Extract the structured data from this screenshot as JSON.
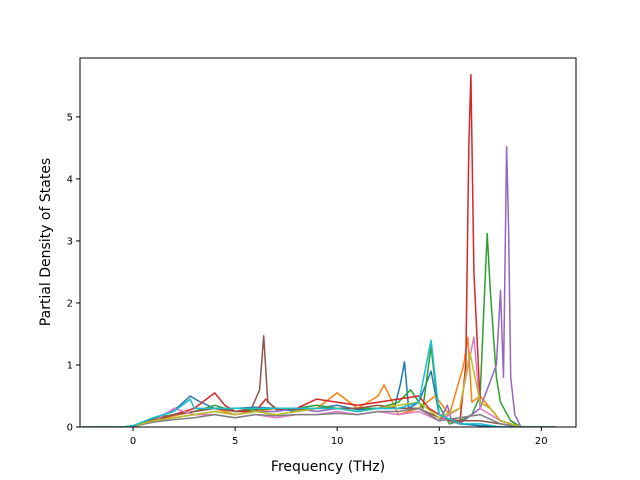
{
  "chart_data": {
    "type": "line",
    "title": "",
    "xlabel": "Frequency (THz)",
    "ylabel": "Partial Density of States",
    "xlim": [
      -2.6,
      21.7
    ],
    "ylim": [
      0,
      5.95
    ],
    "xticks": [
      0,
      5,
      10,
      15,
      20
    ],
    "yticks": [
      0,
      1,
      2,
      3,
      4,
      5
    ],
    "xtick_labels": [
      "0",
      "5",
      "10",
      "15",
      "20"
    ],
    "ytick_labels": [
      "0",
      "1",
      "2",
      "3",
      "4",
      "5"
    ],
    "grid": false,
    "legend": "none",
    "series": [
      {
        "color": "#1f77b4",
        "x": [
          -2.5,
          -0.5,
          0,
          0.8,
          1.5,
          2.2,
          2.8,
          3.2,
          4.0,
          5.0,
          6.0,
          7.0,
          8.0,
          9.0,
          10.0,
          11.0,
          12.0,
          12.8,
          13.1,
          13.3,
          13.5,
          14.0,
          14.6,
          15.0,
          16.0,
          17.0,
          18.0,
          19.0,
          20.7
        ],
        "y": [
          0,
          0,
          0.02,
          0.12,
          0.2,
          0.32,
          0.5,
          0.42,
          0.3,
          0.3,
          0.32,
          0.3,
          0.25,
          0.3,
          0.35,
          0.28,
          0.3,
          0.3,
          0.7,
          1.05,
          0.3,
          0.4,
          0.9,
          0.2,
          0.05,
          0.02,
          0,
          0,
          0
        ]
      },
      {
        "color": "#ff7f0e",
        "x": [
          -2.5,
          -0.5,
          0,
          1.0,
          2.0,
          3.0,
          4.0,
          5.0,
          6.0,
          7.0,
          8.0,
          9.0,
          10.0,
          11.0,
          12.0,
          12.3,
          13.0,
          14.0,
          14.8,
          15.5,
          16.2,
          16.4,
          16.6,
          17.0,
          17.5,
          18.0,
          19.0,
          20.7
        ],
        "y": [
          0,
          0,
          0.01,
          0.1,
          0.18,
          0.25,
          0.3,
          0.2,
          0.25,
          0.3,
          0.28,
          0.3,
          0.55,
          0.3,
          0.5,
          0.68,
          0.2,
          0.3,
          0.5,
          0.2,
          1.0,
          1.45,
          0.4,
          0.5,
          0.3,
          0.1,
          0,
          0
        ]
      },
      {
        "color": "#2ca02c",
        "x": [
          -2.5,
          -0.5,
          0,
          1.0,
          2.0,
          3.0,
          4.0,
          5.0,
          6.0,
          7.0,
          8.0,
          9.0,
          10.0,
          11.0,
          12.0,
          13.0,
          13.6,
          14.2,
          14.6,
          14.9,
          15.5,
          16.0,
          16.6,
          17.0,
          17.2,
          17.35,
          17.5,
          17.8,
          18.0,
          18.5,
          19.0,
          20.7
        ],
        "y": [
          0,
          0,
          0.02,
          0.15,
          0.2,
          0.25,
          0.35,
          0.25,
          0.28,
          0.3,
          0.3,
          0.35,
          0.3,
          0.3,
          0.3,
          0.4,
          0.6,
          0.3,
          1.3,
          0.4,
          0.05,
          0.1,
          0.2,
          0.5,
          2.0,
          3.12,
          2.2,
          0.8,
          0.4,
          0.1,
          0,
          0
        ]
      },
      {
        "color": "#d62728",
        "x": [
          -2.5,
          -0.5,
          0,
          1.0,
          2.0,
          3.0,
          4.0,
          4.5,
          5.0,
          6.0,
          6.5,
          7.0,
          8.0,
          9.0,
          10.0,
          11.0,
          12.0,
          13.0,
          14.0,
          14.5,
          15.0,
          15.5,
          16.0,
          16.3,
          16.45,
          16.55,
          16.7,
          17.0,
          17.5,
          18.0,
          19.0,
          20.7
        ],
        "y": [
          0,
          0,
          0.02,
          0.1,
          0.2,
          0.3,
          0.55,
          0.35,
          0.25,
          0.25,
          0.45,
          0.28,
          0.3,
          0.45,
          0.4,
          0.35,
          0.4,
          0.45,
          0.5,
          0.3,
          0.2,
          0.1,
          0.05,
          1.0,
          4.5,
          5.68,
          2.5,
          0.4,
          0.3,
          0.1,
          0,
          0
        ]
      },
      {
        "color": "#9467bd",
        "x": [
          -2.5,
          -0.5,
          0,
          1.0,
          2.0,
          3.0,
          4.0,
          5.0,
          6.0,
          7.0,
          8.0,
          9.0,
          10.0,
          11.0,
          12.0,
          13.0,
          14.0,
          15.0,
          15.4,
          15.6,
          16.0,
          17.0,
          17.8,
          18.0,
          18.15,
          18.3,
          18.4,
          18.5,
          18.7,
          19.0,
          20.7
        ],
        "y": [
          0,
          0,
          0.01,
          0.1,
          0.15,
          0.2,
          0.25,
          0.2,
          0.25,
          0.25,
          0.3,
          0.25,
          0.3,
          0.25,
          0.3,
          0.3,
          0.3,
          0.1,
          0.35,
          0.1,
          0.05,
          0.3,
          1.0,
          2.2,
          0.8,
          4.52,
          3.2,
          0.8,
          0.2,
          0,
          0
        ]
      },
      {
        "color": "#8c564b",
        "x": [
          -2.5,
          -0.5,
          0,
          1.0,
          2.0,
          3.0,
          4.0,
          5.0,
          5.8,
          6.2,
          6.4,
          6.6,
          7.0,
          8.0,
          9.0,
          10.0,
          11.0,
          12.0,
          13.0,
          14.0,
          15.0,
          16.0,
          17.0,
          18.0,
          19.0,
          20.7
        ],
        "y": [
          0,
          0,
          0.02,
          0.12,
          0.2,
          0.25,
          0.3,
          0.25,
          0.3,
          0.6,
          1.47,
          0.4,
          0.3,
          0.28,
          0.3,
          0.3,
          0.3,
          0.35,
          0.3,
          0.3,
          0.15,
          0.1,
          0.1,
          0.05,
          0,
          0
        ]
      },
      {
        "color": "#e377c2",
        "x": [
          -2.5,
          -0.5,
          0,
          1.0,
          2.0,
          3.0,
          4.0,
          5.0,
          6.0,
          7.0,
          8.0,
          9.0,
          10.0,
          11.0,
          12.0,
          13.0,
          14.0,
          15.0,
          16.0,
          16.7,
          17.0,
          17.5,
          18.0,
          19.0,
          20.7
        ],
        "y": [
          0,
          0,
          0.01,
          0.08,
          0.3,
          0.2,
          0.2,
          0.15,
          0.2,
          0.15,
          0.2,
          0.2,
          0.25,
          0.2,
          0.25,
          0.2,
          0.25,
          0.1,
          0.3,
          1.45,
          0.3,
          0.2,
          0.1,
          0,
          0
        ]
      },
      {
        "color": "#7f7f7f",
        "x": [
          -2.5,
          -0.5,
          0,
          1.0,
          2.0,
          3.0,
          4.0,
          5.0,
          6.0,
          7.0,
          8.0,
          9.0,
          10.0,
          11.0,
          12.0,
          13.0,
          14.0,
          15.0,
          16.0,
          17.0,
          18.0,
          19.0,
          20.7
        ],
        "y": [
          0,
          0,
          0.01,
          0.08,
          0.12,
          0.15,
          0.2,
          0.15,
          0.2,
          0.18,
          0.2,
          0.2,
          0.22,
          0.2,
          0.25,
          0.25,
          0.3,
          0.1,
          0.15,
          0.2,
          0.05,
          0,
          0
        ]
      },
      {
        "color": "#bcbd22",
        "x": [
          -2.5,
          -0.5,
          0,
          1.0,
          2.0,
          3.0,
          4.0,
          5.0,
          6.0,
          7.0,
          8.0,
          9.0,
          10.0,
          11.0,
          12.0,
          13.0,
          14.0,
          15.0,
          16.0,
          16.5,
          17.0,
          17.5,
          18.0,
          19.0,
          20.7
        ],
        "y": [
          0,
          0,
          0.02,
          0.1,
          0.15,
          0.2,
          0.25,
          0.2,
          0.25,
          0.2,
          0.25,
          0.3,
          0.3,
          0.25,
          0.3,
          0.35,
          0.4,
          0.15,
          0.3,
          1.2,
          0.4,
          0.3,
          0.1,
          0,
          0
        ]
      },
      {
        "color": "#17becf",
        "x": [
          -2.5,
          -0.5,
          0,
          1.0,
          2.0,
          2.8,
          3.0,
          4.0,
          5.0,
          6.0,
          7.0,
          8.0,
          9.0,
          10.0,
          11.0,
          12.0,
          13.0,
          14.0,
          14.6,
          15.0,
          16.0,
          17.0,
          18.0,
          19.0,
          20.7
        ],
        "y": [
          0,
          0,
          0.02,
          0.15,
          0.25,
          0.45,
          0.3,
          0.3,
          0.3,
          0.3,
          0.3,
          0.3,
          0.3,
          0.3,
          0.25,
          0.3,
          0.3,
          0.4,
          1.4,
          0.2,
          0.05,
          0.05,
          0,
          0,
          0
        ]
      }
    ]
  }
}
